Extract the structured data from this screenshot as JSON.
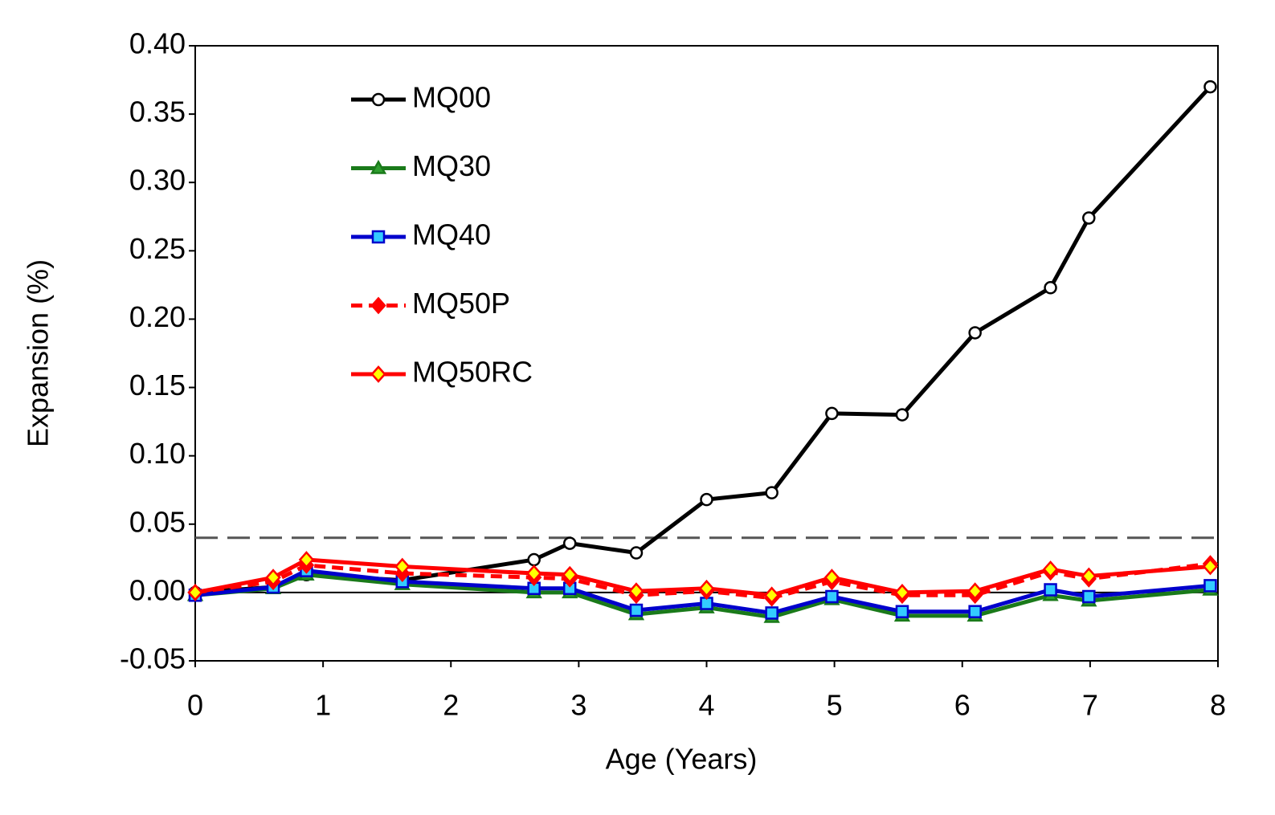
{
  "chart_data": {
    "type": "line",
    "xlabel": "Age (Years)",
    "ylabel": "Expansion (%)",
    "xlim": [
      0,
      8
    ],
    "ylim": [
      -0.05,
      0.4
    ],
    "xticks": [
      0,
      1,
      2,
      3,
      4,
      5,
      6,
      7,
      8
    ],
    "yticks": [
      {
        "value": -0.05,
        "label": "-0.05"
      },
      {
        "value": 0,
        "label": "0.00"
      },
      {
        "value": 0.05,
        "label": "0.05"
      },
      {
        "value": 0.1,
        "label": "0.10"
      },
      {
        "value": 0.15,
        "label": "0.15"
      },
      {
        "value": 0.2,
        "label": "0.20"
      },
      {
        "value": 0.25,
        "label": "0.25"
      },
      {
        "value": 0.3,
        "label": "0.30"
      },
      {
        "value": 0.35,
        "label": "0.35"
      },
      {
        "value": 0.4,
        "label": "0.40"
      }
    ],
    "reference_line": 0.04,
    "legend": "upper left",
    "x": [
      0,
      0.61,
      0.87,
      1.62,
      2.65,
      2.93,
      3.45,
      4.0,
      4.51,
      4.98,
      5.53,
      6.1,
      6.69,
      6.99,
      7.94
    ],
    "series": [
      {
        "name": "MQ00",
        "color": "#000000",
        "marker": "circle",
        "marker_fill": "#ffffff",
        "dash": false,
        "values": [
          0,
          0.004,
          0.013,
          0.009,
          0.024,
          0.036,
          0.029,
          0.068,
          0.073,
          0.131,
          0.13,
          0.19,
          0.223,
          0.274,
          0.37
        ]
      },
      {
        "name": "MQ30",
        "color": "#1a7a1a",
        "marker": "triangle",
        "marker_fill": "#2e9e2e",
        "dash": false,
        "values": [
          -0.002,
          0.003,
          0.013,
          0.006,
          0,
          0,
          -0.016,
          -0.011,
          -0.018,
          -0.005,
          -0.017,
          -0.017,
          -0.002,
          -0.006,
          0.002
        ]
      },
      {
        "name": "MQ40",
        "color": "#0000cc",
        "marker": "square",
        "marker_fill": "#33ccff",
        "dash": false,
        "values": [
          -0.002,
          0.004,
          0.016,
          0.008,
          0.003,
          0.003,
          -0.013,
          -0.008,
          -0.015,
          -0.003,
          -0.014,
          -0.014,
          0.002,
          -0.003,
          0.005
        ]
      },
      {
        "name": "MQ50P",
        "color": "#ff0000",
        "marker": "diamond",
        "marker_fill": "#ff0000",
        "dash": true,
        "values": [
          0,
          0.008,
          0.02,
          0.014,
          0.011,
          0.01,
          -0.002,
          0.001,
          -0.004,
          0.008,
          -0.002,
          -0.002,
          0.015,
          0.01,
          0.021
        ]
      },
      {
        "name": "MQ50RC",
        "color": "#ff0000",
        "marker": "diamond",
        "marker_fill": "#ffff00",
        "dash": false,
        "values": [
          0,
          0.011,
          0.024,
          0.019,
          0.014,
          0.013,
          0.001,
          0.003,
          -0.002,
          0.011,
          0,
          0.001,
          0.017,
          0.012,
          0.019
        ]
      }
    ]
  }
}
